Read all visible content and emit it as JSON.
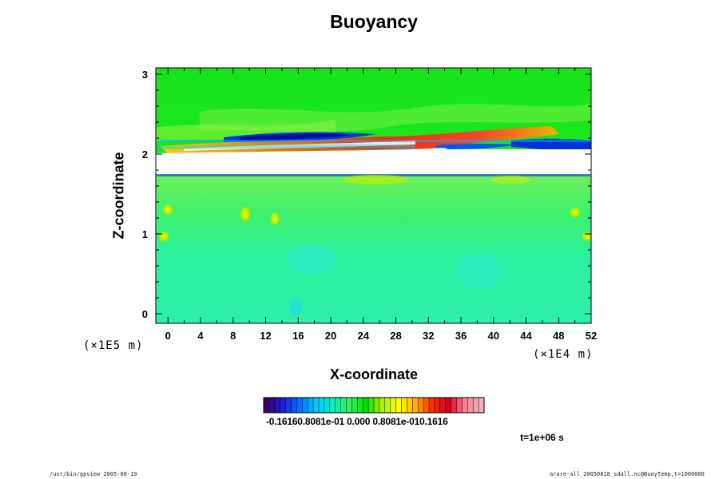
{
  "chart_data": {
    "type": "heatmap",
    "title": "Buoyancy",
    "xlabel": "X-coordinate",
    "ylabel": "Z-coordinate",
    "x_unit": "(×1E4 m)",
    "y_unit": "(×1E5 m)",
    "xlim": [
      -1.5,
      52
    ],
    "ylim": [
      -0.12,
      3.08
    ],
    "x_ticks": [
      0,
      4,
      8,
      12,
      16,
      20,
      24,
      28,
      32,
      36,
      40,
      44,
      48,
      52
    ],
    "y_ticks": [
      0,
      1,
      2,
      3
    ],
    "colorbar": {
      "range": [
        -0.1616,
        0.1616
      ],
      "tick_text": "-0.16160.8081e-01 0.000 0.8081e-010.1616",
      "colors": [
        "#3a006e",
        "#1b1fd8",
        "#0070ff",
        "#00c8ff",
        "#00f0c0",
        "#3cf060",
        "#00e000",
        "#b0f000",
        "#ffff00",
        "#ffb000",
        "#ff3000",
        "#d00020",
        "#ff8090",
        "#f0b0b8"
      ]
    },
    "features": {
      "background_upper": "#1ee61e",
      "background_lower": "#2cf08a",
      "gap_band_z": [
        1.74,
        2.02
      ],
      "warm_layer": "x 0→52 at z≈2.05–2.28, rising to the right",
      "cold_layer": "x 12→30 and 34→52 at z≈2.12–2.26"
    }
  },
  "time_label": "t=1e+06 s",
  "footer_left": "/usr/bin/gpview 2005-08-19",
  "footer_right": "arare-all_20050818_sdall.nc@BuoyTemp,t=1000000"
}
